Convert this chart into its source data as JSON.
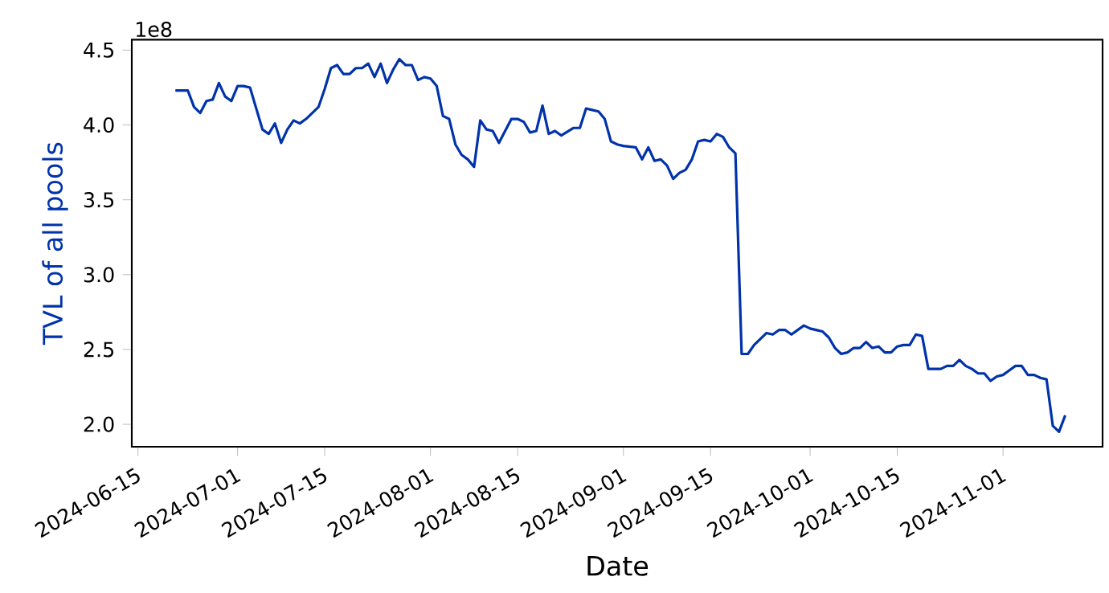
{
  "chart_data": {
    "type": "line",
    "xlabel": "Date",
    "ylabel": "TVL of all pools",
    "annotations": [
      "1e8"
    ],
    "xlim": [
      "2024-06-14",
      "2024-11-17"
    ],
    "ylim": [
      1.85,
      4.57
    ],
    "xticks": [
      "2024-06-15",
      "2024-07-01",
      "2024-07-15",
      "2024-08-01",
      "2024-08-15",
      "2024-09-01",
      "2024-09-15",
      "2024-10-01",
      "2024-10-15",
      "2024-11-01"
    ],
    "yticks": [
      {
        "value": 2,
        "label": "2.0"
      },
      {
        "value": 2.5,
        "label": "2.5"
      },
      {
        "value": 3,
        "label": "3.0"
      },
      {
        "value": 3.5,
        "label": "3.5"
      },
      {
        "value": 4,
        "label": "4.0"
      },
      {
        "value": 4.5,
        "label": "4.5"
      }
    ],
    "series": [
      {
        "color": "#0033aa",
        "x": [
          "2024-06-21",
          "2024-06-23",
          "2024-06-24",
          "2024-06-25",
          "2024-06-26",
          "2024-06-27",
          "2024-06-28",
          "2024-06-29",
          "2024-06-30",
          "2024-07-01",
          "2024-07-02",
          "2024-07-03",
          "2024-07-05",
          "2024-07-06",
          "2024-07-07",
          "2024-07-08",
          "2024-07-09",
          "2024-07-10",
          "2024-07-11",
          "2024-07-12",
          "2024-07-14",
          "2024-07-15",
          "2024-07-16",
          "2024-07-17",
          "2024-07-18",
          "2024-07-19",
          "2024-07-20",
          "2024-07-21",
          "2024-07-22",
          "2024-07-23",
          "2024-07-24",
          "2024-07-25",
          "2024-07-26",
          "2024-07-27",
          "2024-07-28",
          "2024-07-29",
          "2024-07-30",
          "2024-07-31",
          "2024-08-01",
          "2024-08-02",
          "2024-08-03",
          "2024-08-04",
          "2024-08-05",
          "2024-08-06",
          "2024-08-07",
          "2024-08-08",
          "2024-08-09",
          "2024-08-10",
          "2024-08-11",
          "2024-08-12",
          "2024-08-14",
          "2024-08-15",
          "2024-08-16",
          "2024-08-17",
          "2024-08-18",
          "2024-08-19",
          "2024-08-20",
          "2024-08-21",
          "2024-08-22",
          "2024-08-24",
          "2024-08-25",
          "2024-08-26",
          "2024-08-27",
          "2024-08-28",
          "2024-08-29",
          "2024-08-30",
          "2024-08-31",
          "2024-09-01",
          "2024-09-03",
          "2024-09-04",
          "2024-09-05",
          "2024-09-06",
          "2024-09-07",
          "2024-09-08",
          "2024-09-09",
          "2024-09-10",
          "2024-09-11",
          "2024-09-12",
          "2024-09-13",
          "2024-09-14",
          "2024-09-15",
          "2024-09-16",
          "2024-09-17",
          "2024-09-18",
          "2024-09-19",
          "2024-09-20",
          "2024-09-21",
          "2024-09-22",
          "2024-09-23",
          "2024-09-24",
          "2024-09-25",
          "2024-09-26",
          "2024-09-27",
          "2024-09-28",
          "2024-09-30",
          "2024-10-01",
          "2024-10-03",
          "2024-10-04",
          "2024-10-05",
          "2024-10-06",
          "2024-10-07",
          "2024-10-08",
          "2024-10-09",
          "2024-10-10",
          "2024-10-11",
          "2024-10-12",
          "2024-10-13",
          "2024-10-14",
          "2024-10-15",
          "2024-10-16",
          "2024-10-17",
          "2024-10-18",
          "2024-10-19",
          "2024-10-20",
          "2024-10-22",
          "2024-10-23",
          "2024-10-24",
          "2024-10-25",
          "2024-10-26",
          "2024-10-27",
          "2024-10-28",
          "2024-10-29",
          "2024-10-30",
          "2024-10-31",
          "2024-11-01",
          "2024-11-02",
          "2024-11-03",
          "2024-11-04",
          "2024-11-05",
          "2024-11-06",
          "2024-11-07",
          "2024-11-08",
          "2024-11-09",
          "2024-11-10",
          "2024-11-11"
        ],
        "values": [
          4.23,
          4.23,
          4.12,
          4.08,
          4.16,
          4.17,
          4.28,
          4.19,
          4.16,
          4.26,
          4.26,
          4.25,
          3.97,
          3.94,
          4.01,
          3.88,
          3.97,
          4.03,
          4.01,
          4.04,
          4.12,
          4.24,
          4.38,
          4.4,
          4.34,
          4.34,
          4.38,
          4.38,
          4.41,
          4.32,
          4.41,
          4.28,
          4.37,
          4.44,
          4.4,
          4.4,
          4.3,
          4.32,
          4.31,
          4.26,
          4.06,
          4.04,
          3.87,
          3.8,
          3.77,
          3.72,
          4.03,
          3.97,
          3.96,
          3.88,
          4.04,
          4.04,
          4.02,
          3.95,
          3.96,
          4.13,
          3.94,
          3.96,
          3.93,
          3.98,
          3.98,
          4.11,
          4.1,
          4.09,
          4.04,
          3.89,
          3.87,
          3.86,
          3.85,
          3.77,
          3.85,
          3.76,
          3.77,
          3.73,
          3.64,
          3.68,
          3.7,
          3.77,
          3.89,
          3.9,
          3.89,
          3.94,
          3.92,
          3.85,
          3.81,
          2.47,
          2.47,
          2.53,
          2.57,
          2.61,
          2.6,
          2.63,
          2.63,
          2.6,
          2.66,
          2.64,
          2.62,
          2.58,
          2.51,
          2.47,
          2.48,
          2.51,
          2.51,
          2.55,
          2.51,
          2.52,
          2.48,
          2.48,
          2.52,
          2.53,
          2.53,
          2.6,
          2.59,
          2.37,
          2.37,
          2.39,
          2.39,
          2.43,
          2.39,
          2.37,
          2.34,
          2.34,
          2.29,
          2.32,
          2.33,
          2.36,
          2.39,
          2.39,
          2.33,
          2.33,
          2.31,
          2.3,
          1.99,
          1.95,
          2.06
        ]
      }
    ]
  }
}
